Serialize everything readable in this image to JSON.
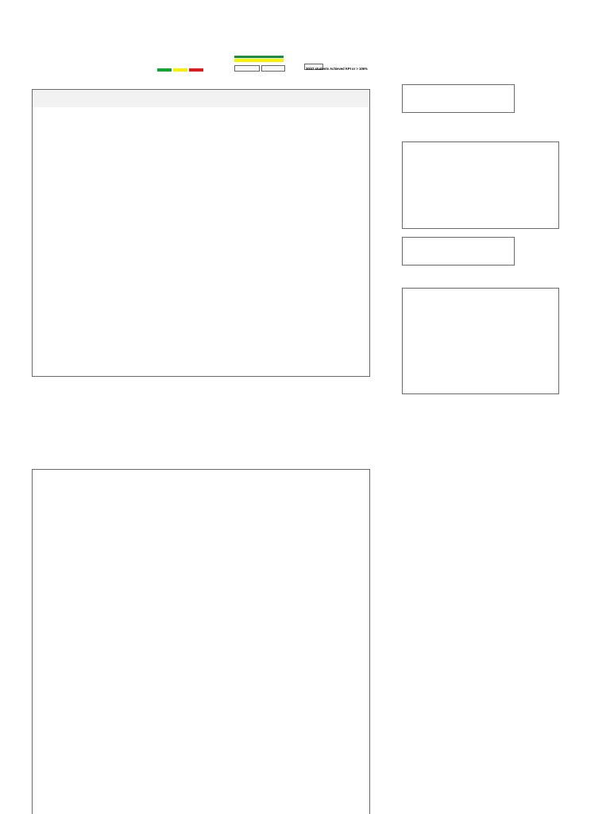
{
  "report": {
    "title": ""
  },
  "legend": {
    "labels": [
      "",
      "",
      ""
    ]
  },
  "summary": {
    "percent_a": "",
    "percent_b": "",
    "note": "30/47 students Achieved KPI or > 106%"
  },
  "chart_data": [
    {
      "type": "bar",
      "title": "",
      "categories": [],
      "series": []
    },
    {
      "type": "bar",
      "title": "",
      "categories": [],
      "series": []
    }
  ],
  "colors": {
    "legend_green": "#12a535",
    "legend_yellow": "#f3f300",
    "legend_red": "#e11b1b",
    "table_border": "#6a6a6a",
    "title_color": "#000066"
  }
}
